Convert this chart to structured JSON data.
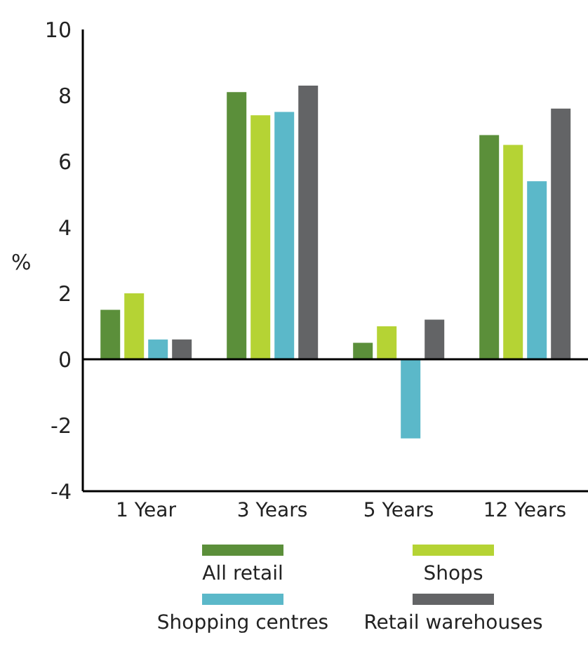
{
  "chart_data": {
    "type": "bar",
    "ylabel": "%",
    "categories": [
      "1 Year",
      "3 Years",
      "5 Years",
      "12 Years"
    ],
    "series": [
      {
        "name": "All retail",
        "color": "#5b8f3a",
        "values": [
          1.5,
          8.1,
          0.5,
          6.8
        ]
      },
      {
        "name": "Shops",
        "color": "#b5d334",
        "values": [
          2.0,
          7.4,
          1.0,
          6.5
        ]
      },
      {
        "name": "Shopping centres",
        "color": "#5bb8c9",
        "values": [
          0.6,
          7.5,
          -2.4,
          5.4
        ]
      },
      {
        "name": "Retail warehouses",
        "color": "#636466",
        "values": [
          0.6,
          8.3,
          1.2,
          7.6
        ]
      }
    ],
    "ylim": [
      -4,
      10
    ],
    "yticks": [
      -4,
      -2,
      0,
      2,
      4,
      6,
      8,
      10
    ],
    "ref_lines": [
      {
        "axis": "y",
        "value": 0,
        "color": "#000000"
      }
    ],
    "legend": "bottom"
  }
}
